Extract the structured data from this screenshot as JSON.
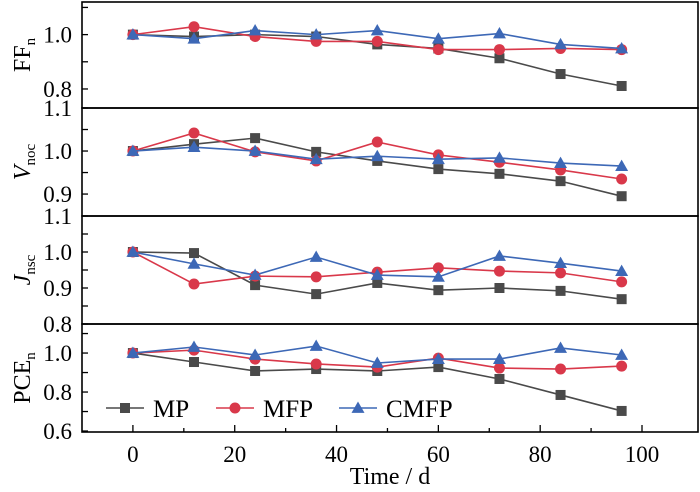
{
  "chart_data": {
    "type": "line",
    "layout": "stacked-panels",
    "xlabel": "Time / d",
    "x": [
      0,
      12,
      24,
      36,
      48,
      60,
      72,
      84,
      96
    ],
    "xlim": [
      -10,
      111
    ],
    "xticks": [
      0,
      20,
      40,
      60,
      80,
      100
    ],
    "xtick_labels": [
      "0",
      "20",
      "40",
      "60",
      "80",
      "100"
    ],
    "legend": {
      "placement": "bottom-left of bottom panel",
      "entries": [
        "MP",
        "MFP",
        "CMFP"
      ]
    },
    "series_styles": [
      {
        "name": "MP",
        "color": "#4a4a4a",
        "marker": "square"
      },
      {
        "name": "MFP",
        "color": "#d9384a",
        "marker": "circle"
      },
      {
        "name": "CMFP",
        "color": "#3d68b6",
        "marker": "triangle"
      }
    ],
    "panels": [
      {
        "id": "ff",
        "ylabel_main": "FF",
        "ylabel_sub": "n",
        "ylim": [
          0.73,
          1.12
        ],
        "yticks": [
          0.8,
          0.9,
          1.0,
          1.1
        ],
        "ytick_labels": {
          "0.8": "0.8",
          "1.0": "1.0"
        },
        "series": [
          {
            "name": "MP",
            "values": [
              1.0,
              0.993,
              1.0,
              0.993,
              0.964,
              0.949,
              0.913,
              0.855,
              0.811
            ]
          },
          {
            "name": "MFP",
            "values": [
              1.0,
              1.029,
              0.993,
              0.975,
              0.975,
              0.945,
              0.945,
              0.949,
              0.945
            ]
          },
          {
            "name": "CMFP",
            "values": [
              1.0,
              0.985,
              1.015,
              1.0,
              1.015,
              0.985,
              1.004,
              0.964,
              0.949
            ]
          }
        ]
      },
      {
        "id": "voc",
        "ylabel_main": "V",
        "ylabel_sub": "noc",
        "ylabel_italic": true,
        "ylim": [
          0.849,
          1.1
        ],
        "yticks": [
          0.9,
          0.95,
          1.0,
          1.05,
          1.1
        ],
        "ytick_labels": {
          "0.9": "0.9",
          "1.0": "1.0",
          "1.1": "1.1"
        },
        "series": [
          {
            "name": "MP",
            "values": [
              1.0,
              1.016,
              1.03,
              0.998,
              0.977,
              0.958,
              0.947,
              0.93,
              0.895
            ]
          },
          {
            "name": "MFP",
            "values": [
              1.0,
              1.042,
              0.998,
              0.977,
              1.021,
              0.991,
              0.974,
              0.956,
              0.935
            ]
          },
          {
            "name": "CMFP",
            "values": [
              1.0,
              1.009,
              1.0,
              0.981,
              0.988,
              0.981,
              0.984,
              0.972,
              0.965
            ]
          }
        ]
      },
      {
        "id": "jsc",
        "ylabel_main": "J",
        "ylabel_sub": "nsc",
        "ylabel_italic": true,
        "ylim": [
          0.8,
          1.1
        ],
        "yticks": [
          0.8,
          0.85,
          0.9,
          0.95,
          1.0,
          1.05,
          1.1
        ],
        "ytick_labels": {
          "0.8": "0.8",
          "0.9": "0.9",
          "1.0": "1.0",
          "1.1": "1.1"
        },
        "series": [
          {
            "name": "MP",
            "values": [
              1.0,
              0.997,
              0.908,
              0.883,
              0.914,
              0.894,
              0.9,
              0.892,
              0.869
            ]
          },
          {
            "name": "MFP",
            "values": [
              1.0,
              0.911,
              0.933,
              0.931,
              0.944,
              0.956,
              0.947,
              0.942,
              0.917
            ]
          },
          {
            "name": "CMFP",
            "values": [
              1.0,
              0.967,
              0.936,
              0.986,
              0.936,
              0.931,
              0.989,
              0.969,
              0.947
            ]
          }
        ]
      },
      {
        "id": "pce",
        "ylabel_main": "PCE",
        "ylabel_sub": "n",
        "ylim": [
          0.595,
          1.149
        ],
        "yticks": [
          0.6,
          0.7,
          0.8,
          0.9,
          1.0,
          1.1
        ],
        "ytick_labels": {
          "0.6": "0.6",
          "0.8": "0.8",
          "1.0": "1.0"
        },
        "series": [
          {
            "name": "MP",
            "values": [
              1.0,
              0.954,
              0.908,
              0.918,
              0.908,
              0.928,
              0.867,
              0.785,
              0.703
            ]
          },
          {
            "name": "MFP",
            "values": [
              1.0,
              1.015,
              0.969,
              0.944,
              0.928,
              0.974,
              0.923,
              0.918,
              0.933
            ]
          },
          {
            "name": "CMFP",
            "values": [
              1.0,
              1.031,
              0.99,
              1.036,
              0.949,
              0.969,
              0.969,
              1.026,
              0.99
            ]
          }
        ]
      }
    ]
  }
}
